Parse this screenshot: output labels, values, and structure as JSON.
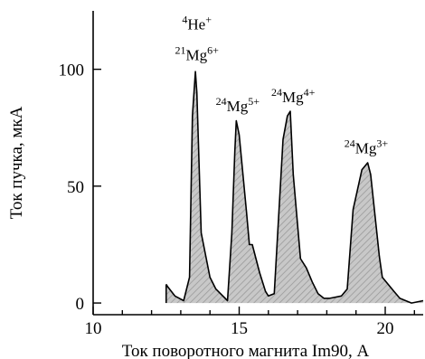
{
  "chart_data": {
    "type": "area",
    "title": "",
    "xlabel": "Ток поворотного магнита Im90, А",
    "ylabel": "Ток пучка, мкА",
    "xlim": [
      10,
      21.3
    ],
    "ylim": [
      -5,
      125
    ],
    "x_ticks": [
      10,
      15,
      20
    ],
    "y_ticks": [
      0,
      50,
      100
    ],
    "grid": false,
    "legend": "none",
    "fill_color": "#c8c8c8",
    "hatch_color": "#9a9a9a",
    "line_color": "#000000",
    "series": [
      {
        "x": [
          12.5,
          12.55,
          12.8,
          13.1,
          13.3,
          13.4,
          13.5,
          13.55,
          13.7,
          14.0,
          14.2,
          14.6,
          14.75,
          14.85,
          14.9,
          15.0,
          15.25,
          15.35,
          15.45,
          15.7,
          15.9,
          16.0,
          16.2,
          16.5,
          16.65,
          16.75,
          16.85,
          17.1,
          17.3,
          17.5,
          17.7,
          17.9,
          18.1,
          18.5,
          18.7,
          18.9,
          19.2,
          19.4,
          19.5,
          19.8,
          19.9,
          20.1,
          20.3,
          20.5,
          20.7,
          20.9,
          21.3
        ],
        "y": [
          8,
          7,
          3,
          1,
          11,
          80,
          99,
          90,
          30,
          11,
          6,
          1,
          30,
          65,
          78,
          72,
          39,
          25,
          25,
          13,
          5,
          3,
          4,
          70,
          80,
          82,
          55,
          19,
          15,
          9,
          4,
          2,
          2,
          3,
          6,
          40,
          57,
          60,
          55,
          20,
          11,
          8,
          5,
          2,
          1,
          0,
          1
        ]
      }
    ],
    "annotations": [
      {
        "mass": "4",
        "element": "He",
        "charge": "+",
        "x": 13.55,
        "y": 117
      },
      {
        "mass": "21",
        "element": "Mg",
        "charge": "6+",
        "x": 13.55,
        "y": 104
      },
      {
        "mass": "24",
        "element": "Mg",
        "charge": "5+",
        "x": 14.95,
        "y": 82
      },
      {
        "mass": "24",
        "element": "Mg",
        "charge": "4+",
        "x": 16.85,
        "y": 86
      },
      {
        "mass": "24",
        "element": "Mg",
        "charge": "3+",
        "x": 19.35,
        "y": 64
      }
    ]
  }
}
